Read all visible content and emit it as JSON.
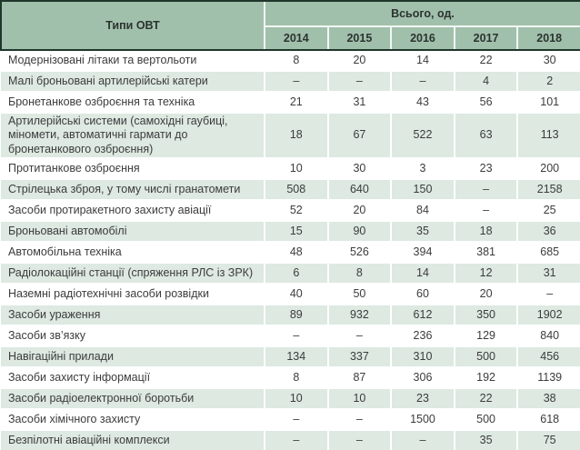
{
  "colors": {
    "header_bg": "#a1c0ab",
    "row_alt_bg": "#dde9e1",
    "border_dark": "#20362b",
    "text": "#3c3c3c"
  },
  "table": {
    "header": {
      "type_col": "Типи ОВТ",
      "group": "Всього, од.",
      "years": [
        "2014",
        "2015",
        "2016",
        "2017",
        "2018"
      ]
    },
    "rows": [
      {
        "label": "Модернізовані літаки та вертольоти",
        "values": [
          "8",
          "20",
          "14",
          "22",
          "30"
        ]
      },
      {
        "label": "Малі броньовані артилерійські катери",
        "values": [
          "–",
          "–",
          "–",
          "4",
          "2"
        ]
      },
      {
        "label": "Бронетанкове озброєння та техніка",
        "values": [
          "21",
          "31",
          "43",
          "56",
          "101"
        ]
      },
      {
        "label": "Артилерійські системи (самохідні гаубиці, міномети, автоматичні гармати до бронетанкового озброєння)",
        "values": [
          "18",
          "67",
          "522",
          "63",
          "113"
        ]
      },
      {
        "label": "Протитанкове озброєння",
        "values": [
          "10",
          "30",
          "3",
          "23",
          "200"
        ]
      },
      {
        "label": "Стрілецька зброя,  у тому числі гранатомети",
        "values": [
          "508",
          "640",
          "150",
          "–",
          "2158"
        ]
      },
      {
        "label": "Засоби протиракетного захисту авіації",
        "values": [
          "52",
          "20",
          "84",
          "–",
          "25"
        ]
      },
      {
        "label": "Броньовані автомобілі",
        "values": [
          "15",
          "90",
          "35",
          "18",
          "36"
        ]
      },
      {
        "label": "Автомобільна техніка",
        "values": [
          "48",
          "526",
          "394",
          "381",
          "685"
        ]
      },
      {
        "label": "Радіолокаційні станції (спряження РЛС із ЗРК)",
        "values": [
          "6",
          "8",
          "14",
          "12",
          "31"
        ]
      },
      {
        "label": "Наземні радіотехнічні засоби розвідки",
        "values": [
          "40",
          "50",
          "60",
          "20",
          "–"
        ]
      },
      {
        "label": "Засоби ураження",
        "values": [
          "89",
          "932",
          "612",
          "350",
          "1902"
        ]
      },
      {
        "label": "Засоби зв’язку",
        "values": [
          "–",
          "–",
          "236",
          "129",
          "840"
        ]
      },
      {
        "label": "Навігаційні прилади",
        "values": [
          "134",
          "337",
          "310",
          "500",
          "456"
        ]
      },
      {
        "label": "Засоби захисту інформації",
        "values": [
          "8",
          "87",
          "306",
          "192",
          "1139"
        ]
      },
      {
        "label": "Засоби радіоелектронної боротьби",
        "values": [
          "10",
          "10",
          "23",
          "22",
          "38"
        ]
      },
      {
        "label": "Засоби хімічного захисту",
        "values": [
          "–",
          "–",
          "1500",
          "500",
          "618"
        ]
      },
      {
        "label": "Безпілотні авіаційні комплекси",
        "values": [
          "–",
          "–",
          "–",
          "35",
          "75"
        ]
      }
    ]
  }
}
